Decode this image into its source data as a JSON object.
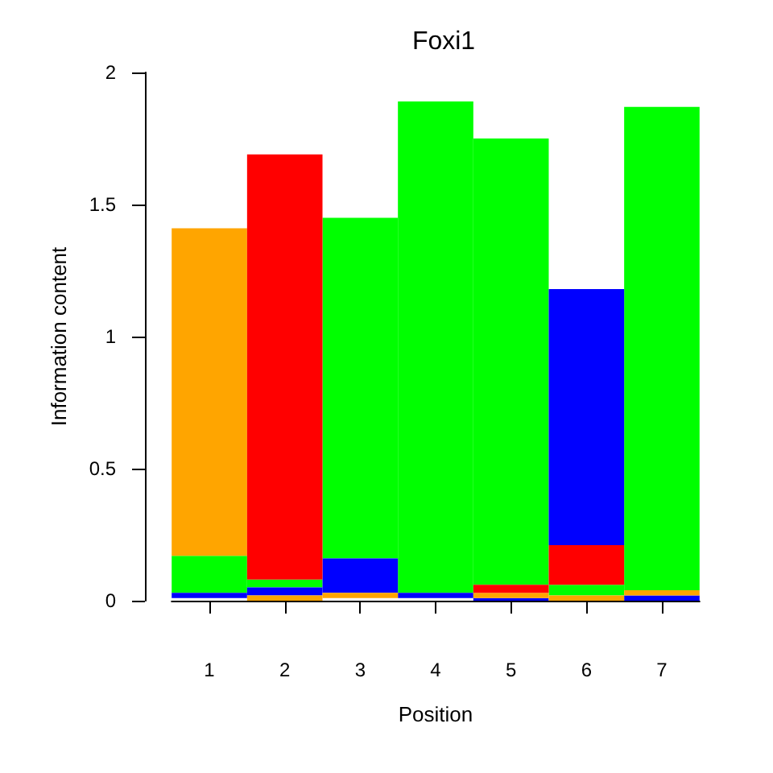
{
  "chart_data": {
    "type": "bar",
    "title": "Foxi1",
    "xlabel": "Position",
    "ylabel": "Information content",
    "categories": [
      "1",
      "2",
      "3",
      "4",
      "5",
      "6",
      "7"
    ],
    "ylim": [
      0,
      2
    ],
    "yticks": [
      0,
      0.5,
      1,
      1.5,
      2
    ],
    "series": [
      {
        "color": "#00ff00",
        "values": [
          0.14,
          0.03,
          1.29,
          1.86,
          1.69,
          0.04,
          1.83
        ],
        "base": [
          0.03,
          0.05,
          0.16,
          0.03,
          0.06,
          0.02,
          0.04
        ]
      },
      {
        "color": "#0000ff",
        "values": [
          0.02,
          0.03,
          0.13,
          0.02,
          0.01,
          0.97,
          0.02
        ],
        "base": [
          0.01,
          0.02,
          0.03,
          0.01,
          0.0,
          0.21,
          0.0
        ]
      },
      {
        "color": "#ffa500",
        "values": [
          1.24,
          0.02,
          0.02,
          null,
          0.02,
          0.02,
          0.02
        ],
        "base": [
          0.17,
          0.0,
          0.01,
          null,
          0.01,
          0.0,
          0.02
        ]
      },
      {
        "color": "#ff0000",
        "values": [
          null,
          1.61,
          null,
          null,
          0.03,
          0.15,
          null
        ],
        "base": [
          null,
          0.08,
          null,
          null,
          0.03,
          0.06,
          null
        ]
      }
    ]
  }
}
